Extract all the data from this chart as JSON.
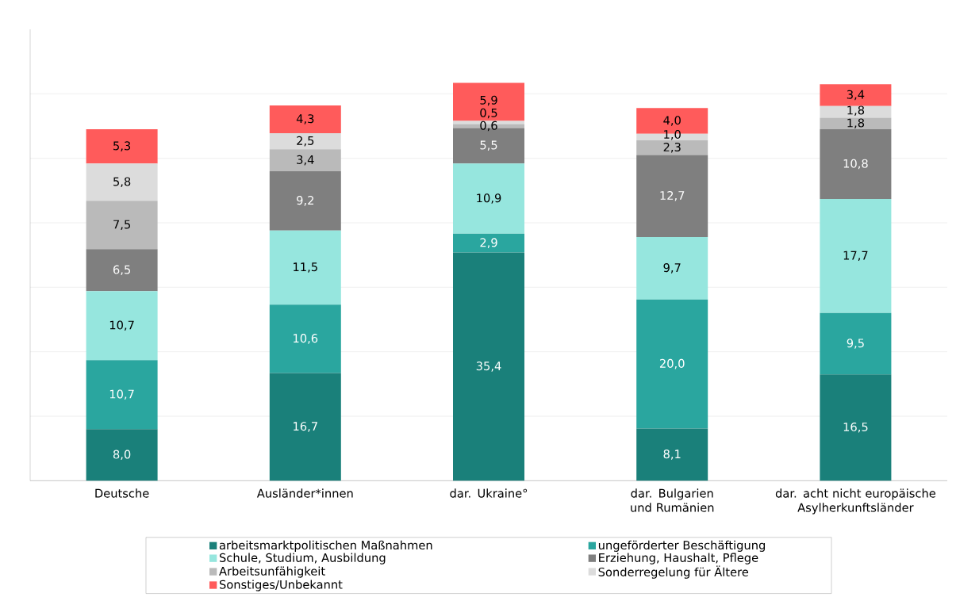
{
  "chart_data": {
    "type": "bar",
    "stacked": true,
    "categories": [
      "Deutsche",
      "Ausländer*innen",
      "dar. Ukraine°",
      "dar. Bulgarien und Rumänien",
      "dar. acht nicht europäische Asylherkunftsländer"
    ],
    "series": [
      {
        "name": "arbeitsmarktpolitischen Maßnahmen",
        "color": "#1a807a",
        "values": [
          8.0,
          16.7,
          35.4,
          8.1,
          16.5
        ],
        "value_labels": [
          "8,0",
          "16,7",
          "35,4",
          "8,1",
          "16,5"
        ]
      },
      {
        "name": "ungeförderter Beschäftigung",
        "color": "#2aa69f",
        "values": [
          10.7,
          10.6,
          2.9,
          20.0,
          9.5
        ],
        "value_labels": [
          "10,7",
          "10,6",
          "2,9",
          "20,0",
          "9,5"
        ]
      },
      {
        "name": "Schule, Studium, Ausbildung",
        "color": "#96e6de",
        "values": [
          10.7,
          11.5,
          10.9,
          9.7,
          17.7
        ],
        "value_labels": [
          "10,7",
          "11,5",
          "10,9",
          "9,7",
          "17,7"
        ]
      },
      {
        "name": "Erziehung, Haushalt, Pflege",
        "color": "#7f7f7f",
        "values": [
          6.5,
          9.2,
          5.5,
          12.7,
          10.8
        ],
        "value_labels": [
          "6,5",
          "9,2",
          "5,5",
          "12,7",
          "10,8"
        ]
      },
      {
        "name": "Arbeitsunfähigkeit",
        "color": "#bababa",
        "values": [
          7.5,
          3.4,
          0.6,
          2.3,
          1.8
        ],
        "value_labels": [
          "7,5",
          "3,4",
          "0,6",
          "2,3",
          "1,8"
        ]
      },
      {
        "name": "Sonderregelung für Ältere",
        "color": "#dcdcdc",
        "values": [
          5.8,
          2.5,
          0.5,
          1.0,
          1.8
        ],
        "value_labels": [
          "5,8",
          "2,5",
          "0,5",
          "1,0",
          "1,8"
        ]
      },
      {
        "name": "Sonstiges/Unbekannt",
        "color": "#ff5b5b",
        "values": [
          5.3,
          4.3,
          5.9,
          4.0,
          3.4
        ],
        "value_labels": [
          "5,3",
          "4,3",
          "5,9",
          "4,0",
          "3,4"
        ]
      }
    ],
    "ylim": [
      0,
      70
    ],
    "yticks": [
      {
        "value": 0,
        "label": null
      },
      {
        "value": 10,
        "label": null
      },
      {
        "value": 20,
        "label": null
      },
      {
        "value": 30,
        "label": null
      },
      {
        "value": 40,
        "label": null
      },
      {
        "value": 50,
        "label": null
      },
      {
        "value": 60,
        "label": null
      }
    ],
    "tick_labels": "x",
    "grid": "y",
    "legend": "bottom"
  }
}
